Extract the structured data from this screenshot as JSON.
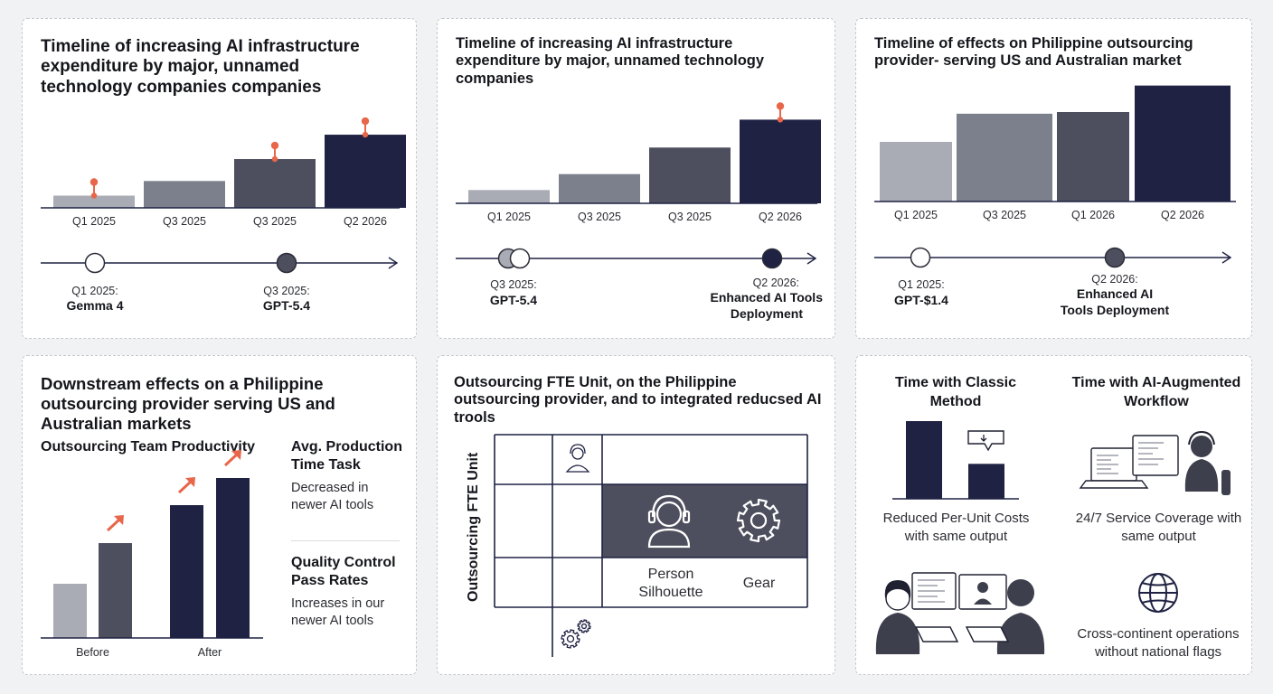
{
  "colors": {
    "navy": "#1f2243",
    "dark": "#4d4f5e",
    "mid": "#7c7f8c",
    "light": "#a9abb5",
    "accent": "#e8664a",
    "axis": "#1f2243"
  },
  "panels": {
    "p1": {
      "title": "Timeline of increasing AI infrastructure expenditure by major, unnamed technology companies companies",
      "timeline": [
        {
          "date": "Q1 2025:",
          "label": "Gemma 4"
        },
        {
          "date": "Q3 2025:",
          "label": "GPT-5.4"
        }
      ]
    },
    "p2": {
      "title": "Timeline of increasing AI infrastructure expenditure by major, unnamed technology companies",
      "timeline": [
        {
          "date": "Q3 2025:",
          "label": "GPT-5.4"
        },
        {
          "date": "Q2 2026:",
          "label_lines": [
            "Enhanced AI Tools",
            "Deployment"
          ]
        }
      ]
    },
    "p3": {
      "title": "Timeline of effects on Philippine outsourcing provider- serving US and Australian market",
      "timeline": [
        {
          "date": "Q1 2025:",
          "label": "GPT-$1.4"
        },
        {
          "date": "Q2 2026:",
          "label_lines": [
            "Enhanced AI",
            "Tools Deployment"
          ]
        }
      ]
    },
    "p4": {
      "title": "Downstream effects on a Philippine outsourcing provider serving US and Australian markets",
      "chart_title": "Outsourcing Team Productivity",
      "side": [
        {
          "heading": "Avg. Production Time Task",
          "body": "Decreased in newer AI tools"
        },
        {
          "heading": "Quality Control Pass Rates",
          "body": "Increases in our newer AI tools"
        }
      ]
    },
    "p5": {
      "title": "Outsourcing FTE Unit, on the Philippine outsourcing provider, and to integrated reducsed AI trools",
      "ylabel": "Outsourcing FTE Unit",
      "cells": {
        "person": "Person Silhouette",
        "gear": "Gear"
      }
    },
    "p6": {
      "col1_title": "Time with Classic Method",
      "col2_title": "Time with AI-Augmented Workflow",
      "captions": [
        "Reduced Per-Unit Costs with same output",
        "24/7 Service Coverage with same output",
        "Cross-continent operations without national flags"
      ]
    }
  },
  "chart_data": [
    {
      "type": "bar",
      "title": "Timeline of increasing AI infrastructure expenditure by major, unnamed technology companies companies",
      "categories": [
        "Q1 2025",
        "Q3 2025",
        "Q3 2025",
        "Q2 2026"
      ],
      "values": [
        1.0,
        2.2,
        4.0,
        6.0
      ],
      "markers": [
        true,
        false,
        true,
        true
      ],
      "ylim": [
        0,
        6.3
      ]
    },
    {
      "type": "bar",
      "title": "Timeline of increasing AI infrastructure expenditure by major, unnamed technology companies",
      "categories": [
        "Q1 2025",
        "Q3 2025",
        "Q3 2025",
        "Q2 2026"
      ],
      "values": [
        1.0,
        2.2,
        4.2,
        6.3
      ],
      "markers": [
        false,
        false,
        false,
        true
      ],
      "ylim": [
        0,
        6.6
      ]
    },
    {
      "type": "bar",
      "title": "Timeline of effects on Philippine outsourcing provider- serving US and Australian market",
      "categories": [
        "Q1 2025",
        "Q3 2025",
        "Q1 2026",
        "Q2 2026"
      ],
      "values": [
        3.6,
        5.3,
        5.4,
        7.0
      ],
      "ylim": [
        0,
        7.2
      ]
    },
    {
      "type": "bar",
      "title": "Outsourcing Team Productivity",
      "categories": [
        "Before",
        "After"
      ],
      "series": [
        {
          "values": [
            2.0,
            4.9
          ]
        },
        {
          "values": [
            3.5,
            5.9
          ]
        }
      ],
      "ylim": [
        0,
        6.5
      ]
    },
    {
      "type": "bar",
      "categories": [
        "Time with Classic Method"
      ],
      "series": [
        {
          "values": [
            1.0
          ]
        },
        {
          "values": [
            0.45
          ]
        }
      ],
      "ylim": [
        0,
        1.0
      ]
    }
  ]
}
